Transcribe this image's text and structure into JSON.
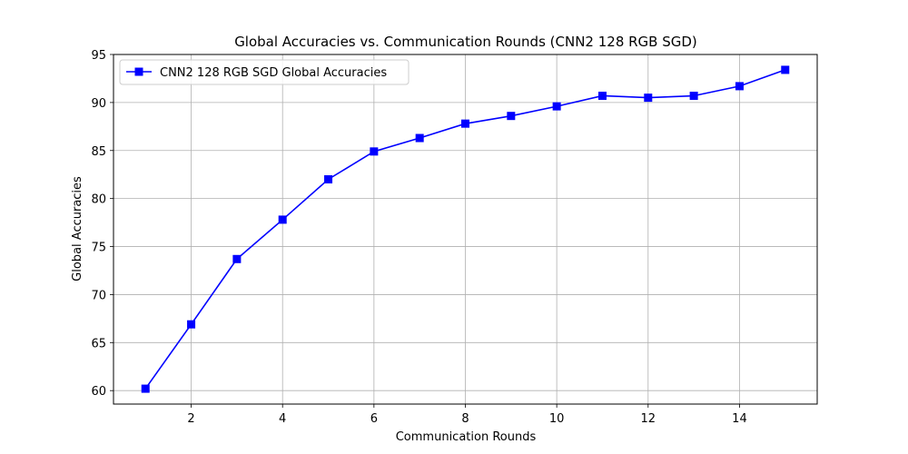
{
  "chart_data": {
    "type": "line",
    "title": "Global Accuracies vs. Communication Rounds (CNN2 128 RGB SGD)",
    "xlabel": "Communication Rounds",
    "ylabel": "Global Accuracies",
    "xlim": [
      0.3,
      15.7
    ],
    "ylim": [
      58.6,
      95
    ],
    "xticks": [
      2,
      4,
      6,
      8,
      10,
      12,
      14
    ],
    "yticks": [
      60,
      65,
      70,
      75,
      80,
      85,
      90,
      95
    ],
    "grid": true,
    "legend_position": "top-left",
    "marker": "square",
    "series": [
      {
        "name": "CNN2 128 RGB SGD Global Accuracies",
        "color": "#0000ff",
        "x": [
          1,
          2,
          3,
          4,
          5,
          6,
          7,
          8,
          9,
          10,
          11,
          12,
          13,
          14,
          15
        ],
        "y": [
          60.2,
          66.9,
          73.7,
          77.8,
          82.0,
          84.9,
          86.3,
          87.8,
          88.6,
          89.6,
          90.7,
          90.5,
          90.7,
          91.7,
          93.4
        ]
      }
    ]
  }
}
